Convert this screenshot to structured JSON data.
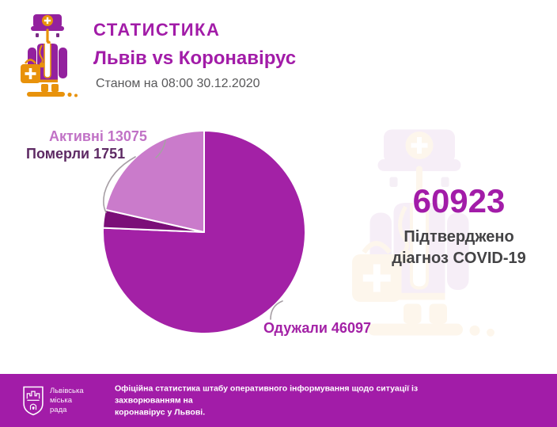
{
  "header": {
    "title": "СТАТИСТИКА",
    "subtitle": "Львів vs Коронавірус",
    "as_of": "Станом на 08:00 30.12.2020"
  },
  "chart_data": {
    "type": "pie",
    "title": "СТАТИСТИКА Львів vs Коронавірус",
    "as_of": "Станом на 08:00 30.12.2020",
    "total": 60923,
    "start_angle_deg": 0,
    "direction": "clockwise",
    "legend_position": "callout-labels",
    "slices": [
      {
        "key": "recovered",
        "label": "Одужали",
        "value": 46097,
        "color": "#a321a6",
        "label_color": "#a321a6"
      },
      {
        "key": "deaths",
        "label": "Померли",
        "value": 1751,
        "color": "#7b0f78",
        "label_color": "#5e2a64"
      },
      {
        "key": "active",
        "label": "Активні",
        "value": 13075,
        "color": "#ca7bcb",
        "label_color": "#c172c6"
      }
    ]
  },
  "summary": {
    "value": "60923",
    "caption_line1": "Підтверджено",
    "caption_line2": "діагноз COVID-19"
  },
  "footer": {
    "org": [
      "Львівська",
      "міська",
      "рада"
    ],
    "note_line1": "Офіційна статистика штабу оперативного інформування щодо ситуації із захворюванням на",
    "note_line2": "коронавірус у Львові."
  },
  "colors": {
    "brand_magenta": "#a21ca8",
    "pie_recovered": "#a321a6",
    "pie_deaths": "#7b0f78",
    "pie_active": "#ca7bcb",
    "date_text": "#58585a",
    "caption_text": "#434345",
    "footer_bg": "#a21ca8",
    "icon_purple": "#93219e",
    "icon_orange": "#e8920b"
  },
  "icons": {
    "doctor": "doctor-mascot-icon",
    "watermark": "doctor-mascot-watermark",
    "emblem": "lviv-city-council-emblem"
  }
}
